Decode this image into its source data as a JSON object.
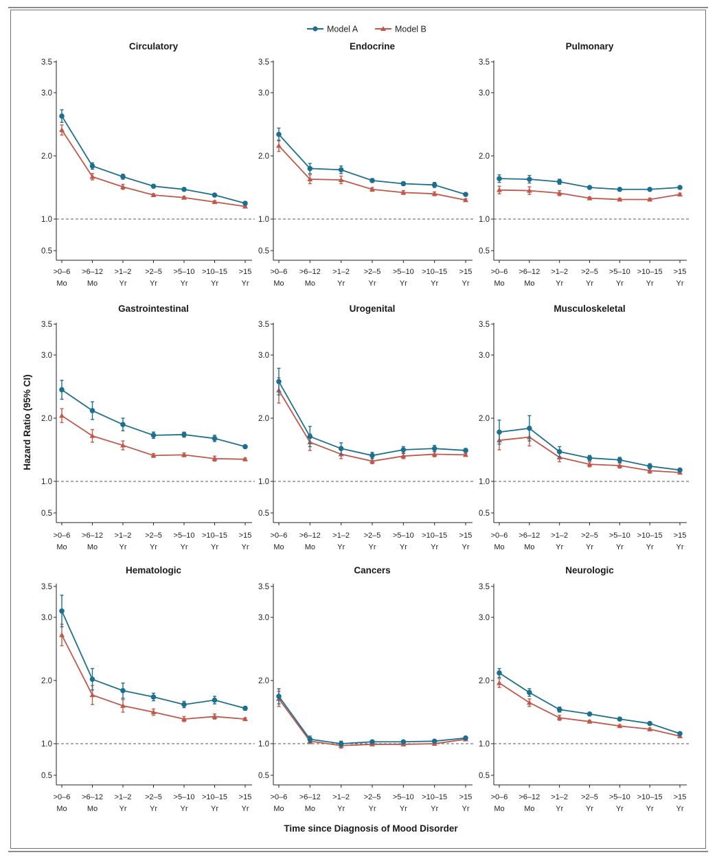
{
  "legend": [
    {
      "name": "Model A",
      "color": "#1d6f8f",
      "marker": "circle"
    },
    {
      "name": "Model B",
      "color": "#c0574a",
      "marker": "triangle"
    }
  ],
  "xlabel": "Time since Diagnosis of Mood Disorder",
  "ylabel": "Hazard Ratio (95% CI)",
  "reference_line": 1.0,
  "chart_data": [
    {
      "type": "line",
      "title": "Circulatory",
      "categories": [
        [
          ">0–6",
          "Mo"
        ],
        [
          ">6–12",
          "Mo"
        ],
        [
          ">1–2",
          "Yr"
        ],
        [
          ">2–5",
          "Yr"
        ],
        [
          ">5–10",
          "Yr"
        ],
        [
          ">10–15",
          "Yr"
        ],
        [
          ">15",
          "Yr"
        ]
      ],
      "yticks": [
        "0.5",
        "1.0",
        "2.0",
        "3.0",
        "3.5"
      ],
      "ylim": [
        0.5,
        3.5
      ],
      "series": [
        {
          "name": "Model A",
          "values": [
            2.63,
            1.84,
            1.67,
            1.52,
            1.47,
            1.38,
            1.25
          ],
          "ci_low": [
            2.53,
            1.79,
            1.63,
            1.5,
            1.45,
            1.36,
            1.24
          ],
          "ci_high": [
            2.73,
            1.89,
            1.71,
            1.54,
            1.49,
            1.4,
            1.26
          ]
        },
        {
          "name": "Model B",
          "values": [
            2.41,
            1.67,
            1.51,
            1.38,
            1.34,
            1.27,
            1.2
          ],
          "ci_low": [
            2.33,
            1.62,
            1.47,
            1.36,
            1.32,
            1.25,
            1.19
          ],
          "ci_high": [
            2.49,
            1.72,
            1.55,
            1.4,
            1.36,
            1.29,
            1.21
          ]
        }
      ]
    },
    {
      "type": "line",
      "title": "Endocrine",
      "categories": [
        [
          ">0–6",
          "Mo"
        ],
        [
          ">6–12",
          "Mo"
        ],
        [
          ">1–2",
          "Yr"
        ],
        [
          ">2–5",
          "Yr"
        ],
        [
          ">5–10",
          "Yr"
        ],
        [
          ">10–15",
          "Yr"
        ],
        [
          ">15",
          "Yr"
        ]
      ],
      "yticks": [
        "0.5",
        "1.0",
        "2.0",
        "3.0",
        "3.5"
      ],
      "ylim": [
        0.5,
        3.5
      ],
      "series": [
        {
          "name": "Model A",
          "values": [
            2.34,
            1.8,
            1.78,
            1.61,
            1.56,
            1.54,
            1.39
          ],
          "ci_low": [
            2.24,
            1.72,
            1.72,
            1.58,
            1.53,
            1.5,
            1.37
          ],
          "ci_high": [
            2.44,
            1.88,
            1.84,
            1.64,
            1.59,
            1.58,
            1.41
          ]
        },
        {
          "name": "Model B",
          "values": [
            2.16,
            1.63,
            1.62,
            1.47,
            1.42,
            1.4,
            1.3
          ],
          "ci_low": [
            2.07,
            1.56,
            1.56,
            1.44,
            1.39,
            1.37,
            1.28
          ],
          "ci_high": [
            2.25,
            1.7,
            1.68,
            1.5,
            1.45,
            1.43,
            1.32
          ]
        }
      ]
    },
    {
      "type": "line",
      "title": "Pulmonary",
      "categories": [
        [
          ">0–6",
          "Mo"
        ],
        [
          ">6–12",
          "Mo"
        ],
        [
          ">1–2",
          "Yr"
        ],
        [
          ">2–5",
          "Yr"
        ],
        [
          ">5–10",
          "Yr"
        ],
        [
          ">10–15",
          "Yr"
        ],
        [
          ">15",
          "Yr"
        ]
      ],
      "yticks": [
        "0.5",
        "1.0",
        "2.0",
        "3.0",
        "3.5"
      ],
      "ylim": [
        0.5,
        3.5
      ],
      "series": [
        {
          "name": "Model A",
          "values": [
            1.64,
            1.63,
            1.59,
            1.5,
            1.47,
            1.47,
            1.5
          ],
          "ci_low": [
            1.58,
            1.57,
            1.55,
            1.48,
            1.45,
            1.45,
            1.48
          ],
          "ci_high": [
            1.7,
            1.69,
            1.63,
            1.52,
            1.49,
            1.49,
            1.52
          ]
        },
        {
          "name": "Model B",
          "values": [
            1.46,
            1.45,
            1.41,
            1.33,
            1.31,
            1.31,
            1.39
          ],
          "ci_low": [
            1.4,
            1.39,
            1.37,
            1.31,
            1.29,
            1.29,
            1.37
          ],
          "ci_high": [
            1.52,
            1.51,
            1.45,
            1.35,
            1.33,
            1.33,
            1.41
          ]
        }
      ]
    },
    {
      "type": "line",
      "title": "Gastrointestinal",
      "categories": [
        [
          ">0–6",
          "Mo"
        ],
        [
          ">6–12",
          "Mo"
        ],
        [
          ">1–2",
          "Yr"
        ],
        [
          ">2–5",
          "Yr"
        ],
        [
          ">5–10",
          "Yr"
        ],
        [
          ">10–15",
          "Yr"
        ],
        [
          ">15",
          "Yr"
        ]
      ],
      "yticks": [
        "0.5",
        "1.0",
        "2.0",
        "3.0",
        "3.5"
      ],
      "ylim": [
        0.5,
        3.5
      ],
      "series": [
        {
          "name": "Model A",
          "values": [
            2.45,
            2.12,
            1.9,
            1.73,
            1.74,
            1.68,
            1.55
          ],
          "ci_low": [
            2.3,
            1.98,
            1.8,
            1.68,
            1.7,
            1.63,
            1.53
          ],
          "ci_high": [
            2.6,
            2.26,
            2.0,
            1.78,
            1.78,
            1.73,
            1.57
          ]
        },
        {
          "name": "Model B",
          "values": [
            2.04,
            1.72,
            1.57,
            1.41,
            1.42,
            1.36,
            1.35
          ],
          "ci_low": [
            1.93,
            1.62,
            1.5,
            1.38,
            1.39,
            1.32,
            1.33
          ],
          "ci_high": [
            2.15,
            1.82,
            1.64,
            1.44,
            1.45,
            1.4,
            1.37
          ]
        }
      ]
    },
    {
      "type": "line",
      "title": "Urogenital",
      "categories": [
        [
          ">0–6",
          "Mo"
        ],
        [
          ">6–12",
          "Mo"
        ],
        [
          ">1–2",
          "Yr"
        ],
        [
          ">2–5",
          "Yr"
        ],
        [
          ">5–10",
          "Yr"
        ],
        [
          ">10–15",
          "Yr"
        ],
        [
          ">15",
          "Yr"
        ]
      ],
      "yticks": [
        "0.5",
        "1.0",
        "2.0",
        "3.0",
        "3.5"
      ],
      "ylim": [
        0.5,
        3.5
      ],
      "series": [
        {
          "name": "Model A",
          "values": [
            2.58,
            1.71,
            1.52,
            1.41,
            1.5,
            1.52,
            1.49
          ],
          "ci_low": [
            2.37,
            1.55,
            1.43,
            1.36,
            1.45,
            1.47,
            1.46
          ],
          "ci_high": [
            2.79,
            1.87,
            1.61,
            1.46,
            1.55,
            1.57,
            1.52
          ]
        },
        {
          "name": "Model B",
          "values": [
            2.44,
            1.62,
            1.43,
            1.32,
            1.4,
            1.43,
            1.42
          ],
          "ci_low": [
            2.24,
            1.49,
            1.36,
            1.28,
            1.36,
            1.39,
            1.4
          ],
          "ci_high": [
            2.64,
            1.75,
            1.5,
            1.36,
            1.44,
            1.47,
            1.44
          ]
        }
      ]
    },
    {
      "type": "line",
      "title": "Musculoskeletal",
      "categories": [
        [
          ">0–6",
          "Mo"
        ],
        [
          ">6–12",
          "Mo"
        ],
        [
          ">1–2",
          "Yr"
        ],
        [
          ">2–5",
          "Yr"
        ],
        [
          ">5–10",
          "Yr"
        ],
        [
          ">10–15",
          "Yr"
        ],
        [
          ">15",
          "Yr"
        ]
      ],
      "yticks": [
        "0.5",
        "1.0",
        "2.0",
        "3.0",
        "3.5"
      ],
      "ylim": [
        0.5,
        3.5
      ],
      "series": [
        {
          "name": "Model A",
          "values": [
            1.78,
            1.84,
            1.47,
            1.37,
            1.34,
            1.24,
            1.18
          ],
          "ci_low": [
            1.59,
            1.64,
            1.39,
            1.33,
            1.3,
            1.2,
            1.16
          ],
          "ci_high": [
            1.97,
            2.04,
            1.55,
            1.41,
            1.38,
            1.28,
            1.2
          ]
        },
        {
          "name": "Model B",
          "values": [
            1.65,
            1.7,
            1.38,
            1.27,
            1.25,
            1.17,
            1.14
          ],
          "ci_low": [
            1.5,
            1.56,
            1.31,
            1.23,
            1.21,
            1.13,
            1.12
          ],
          "ci_high": [
            1.8,
            1.84,
            1.45,
            1.31,
            1.29,
            1.21,
            1.16
          ]
        }
      ]
    },
    {
      "type": "line",
      "title": "Hematologic",
      "categories": [
        [
          ">0–6",
          "Mo"
        ],
        [
          ">6–12",
          "Mo"
        ],
        [
          ">1–2",
          "Yr"
        ],
        [
          ">2–5",
          "Yr"
        ],
        [
          ">5–10",
          "Yr"
        ],
        [
          ">10–15",
          "Yr"
        ],
        [
          ">15",
          "Yr"
        ]
      ],
      "yticks": [
        "0.5",
        "1.0",
        "2.0",
        "3.0",
        "3.5"
      ],
      "ylim": [
        0.5,
        3.5
      ],
      "series": [
        {
          "name": "Model A",
          "values": [
            3.1,
            2.02,
            1.84,
            1.74,
            1.62,
            1.69,
            1.56
          ],
          "ci_low": [
            2.85,
            1.85,
            1.72,
            1.68,
            1.57,
            1.63,
            1.53
          ],
          "ci_high": [
            3.35,
            2.19,
            1.96,
            1.8,
            1.67,
            1.75,
            1.59
          ]
        },
        {
          "name": "Model B",
          "values": [
            2.72,
            1.77,
            1.6,
            1.5,
            1.39,
            1.43,
            1.39
          ],
          "ci_low": [
            2.55,
            1.62,
            1.5,
            1.45,
            1.35,
            1.39,
            1.37
          ],
          "ci_high": [
            2.89,
            1.92,
            1.7,
            1.55,
            1.43,
            1.47,
            1.41
          ]
        }
      ]
    },
    {
      "type": "line",
      "title": "Cancers",
      "categories": [
        [
          ">0–6",
          "Mo"
        ],
        [
          ">6–12",
          "Mo"
        ],
        [
          ">1–2",
          "Yr"
        ],
        [
          ">2–5",
          "Yr"
        ],
        [
          ">5–10",
          "Yr"
        ],
        [
          ">10–15",
          "Yr"
        ],
        [
          ">15",
          "Yr"
        ]
      ],
      "yticks": [
        "0.5",
        "1.0",
        "2.0",
        "3.0",
        "3.5"
      ],
      "ylim": [
        0.5,
        3.5
      ],
      "series": [
        {
          "name": "Model A",
          "values": [
            1.75,
            1.07,
            1.0,
            1.03,
            1.03,
            1.04,
            1.09
          ],
          "ci_low": [
            1.63,
            1.02,
            0.96,
            1.01,
            1.01,
            1.02,
            1.08
          ],
          "ci_high": [
            1.87,
            1.12,
            1.04,
            1.05,
            1.05,
            1.06,
            1.1
          ]
        },
        {
          "name": "Model B",
          "values": [
            1.71,
            1.04,
            0.97,
            0.99,
            0.99,
            1.0,
            1.07
          ],
          "ci_low": [
            1.59,
            1.0,
            0.93,
            0.97,
            0.97,
            0.98,
            1.06
          ],
          "ci_high": [
            1.83,
            1.08,
            1.01,
            1.01,
            1.01,
            1.02,
            1.08
          ]
        }
      ]
    },
    {
      "type": "line",
      "title": "Neurologic",
      "categories": [
        [
          ">0–6",
          "Mo"
        ],
        [
          ">6–12",
          "Mo"
        ],
        [
          ">1–2",
          "Yr"
        ],
        [
          ">2–5",
          "Yr"
        ],
        [
          ">5–10",
          "Yr"
        ],
        [
          ">10–15",
          "Yr"
        ],
        [
          ">15",
          "Yr"
        ]
      ],
      "yticks": [
        "0.5",
        "1.0",
        "2.0",
        "3.0",
        "3.5"
      ],
      "ylim": [
        0.5,
        3.5
      ],
      "series": [
        {
          "name": "Model A",
          "values": [
            2.12,
            1.81,
            1.54,
            1.47,
            1.39,
            1.32,
            1.16
          ],
          "ci_low": [
            2.05,
            1.75,
            1.5,
            1.45,
            1.37,
            1.3,
            1.15
          ],
          "ci_high": [
            2.19,
            1.87,
            1.58,
            1.49,
            1.41,
            1.34,
            1.17
          ]
        },
        {
          "name": "Model B",
          "values": [
            1.96,
            1.65,
            1.41,
            1.35,
            1.28,
            1.23,
            1.12
          ],
          "ci_low": [
            1.89,
            1.59,
            1.37,
            1.33,
            1.26,
            1.21,
            1.11
          ],
          "ci_high": [
            2.03,
            1.71,
            1.45,
            1.37,
            1.3,
            1.25,
            1.13
          ]
        }
      ]
    }
  ]
}
